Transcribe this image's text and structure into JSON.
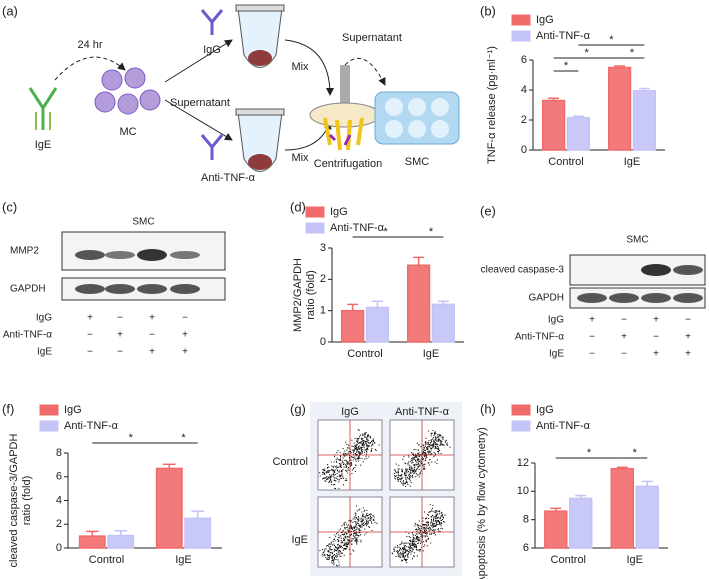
{
  "panel_labels": [
    "(a)",
    "(b)",
    "(c)",
    "(d)",
    "(e)",
    "(f)",
    "(g)",
    "(h)"
  ],
  "diagram": {
    "time": "24 hr",
    "antibody": "IgE",
    "cells": "MC",
    "supernatant_left": "Supernatant",
    "igg": "IgG",
    "anti": "Anti-TNF-α",
    "mix_top": "Mix",
    "mix_bottom": "Mix",
    "supernatant_right": "Supernatant",
    "centrifuge": "Centrifugation",
    "target": "SMC"
  },
  "blot_c": {
    "title": "SMC",
    "bands": [
      "MMP2",
      "GAPDH"
    ],
    "rows": [
      {
        "label": "IgG",
        "signs": [
          "+",
          "−",
          "+",
          "−"
        ]
      },
      {
        "label": "Anti-TNF-α",
        "signs": [
          "−",
          "+",
          "−",
          "+"
        ]
      },
      {
        "label": "IgE",
        "signs": [
          "−",
          "−",
          "+",
          "+"
        ]
      }
    ]
  },
  "blot_e": {
    "title": "SMC",
    "bands": [
      "cleaved caspase-3",
      "GAPDH"
    ],
    "rows": [
      {
        "label": "IgG",
        "signs": [
          "+",
          "−",
          "+",
          "−"
        ]
      },
      {
        "label": "Anti-TNF-α",
        "signs": [
          "−",
          "+",
          "−",
          "+"
        ]
      },
      {
        "label": "IgE",
        "signs": [
          "−",
          "−",
          "+",
          "+"
        ]
      }
    ]
  },
  "flow_g": {
    "columns": [
      "IgG",
      "Anti-TNF-α"
    ],
    "rows": [
      "Control",
      "IgE"
    ]
  },
  "chart_data": [
    {
      "type": "bar",
      "y_label": [
        "TNF-α release (pg·ml⁻¹)"
      ],
      "categories": [
        "Control",
        "IgE"
      ],
      "series": [
        {
          "name": "IgG",
          "color": "#f26b6b",
          "values": [
            3.3,
            5.5
          ],
          "errors": [
            0.15,
            0.1
          ]
        },
        {
          "name": "Anti-TNF-α",
          "color": "#c3c3f7",
          "values": [
            2.15,
            3.95
          ],
          "errors": [
            0.1,
            0.15
          ]
        }
      ],
      "ylim": [
        0,
        6
      ],
      "yticks": [
        0,
        2,
        4,
        6
      ],
      "annotations": [
        "*",
        "*",
        "*",
        "*"
      ]
    },
    {
      "type": "bar",
      "y_label": [
        "MMP2/GAPDH",
        "ratio (fold)"
      ],
      "categories": [
        "Control",
        "IgE"
      ],
      "series": [
        {
          "name": "IgG",
          "color": "#f26b6b",
          "values": [
            1.0,
            2.45
          ],
          "errors": [
            0.2,
            0.25
          ]
        },
        {
          "name": "Anti-TNF-α",
          "color": "#c3c3f7",
          "values": [
            1.1,
            1.2
          ],
          "errors": [
            0.2,
            0.1
          ]
        }
      ],
      "ylim": [
        0,
        3
      ],
      "yticks": [
        0,
        1,
        2,
        3
      ],
      "annotations": [
        "*",
        "*"
      ]
    },
    {
      "type": "bar",
      "y_label": [
        "cleaved caspase-3/GAPDH",
        "ratio (fold)"
      ],
      "categories": [
        "Control",
        "IgE"
      ],
      "series": [
        {
          "name": "IgG",
          "color": "#f26b6b",
          "values": [
            1.0,
            6.7
          ],
          "errors": [
            0.4,
            0.35
          ]
        },
        {
          "name": "Anti-TNF-α",
          "color": "#c3c3f7",
          "values": [
            1.05,
            2.5
          ],
          "errors": [
            0.4,
            0.6
          ]
        }
      ],
      "ylim": [
        0,
        8
      ],
      "yticks": [
        0,
        2,
        4,
        6,
        8
      ],
      "annotations": [
        "*",
        "*"
      ]
    },
    {
      "type": "bar",
      "y_label": [
        "Apoptosis (% by flow cytometry)"
      ],
      "categories": [
        "Control",
        "IgE"
      ],
      "series": [
        {
          "name": "IgG",
          "color": "#f26b6b",
          "values": [
            8.6,
            11.6
          ],
          "errors": [
            0.2,
            0.1
          ]
        },
        {
          "name": "Anti-TNF-α",
          "color": "#c3c3f7",
          "values": [
            9.5,
            10.35
          ],
          "errors": [
            0.2,
            0.35
          ]
        }
      ],
      "ylim": [
        6,
        12
      ],
      "yticks": [
        6,
        8,
        10,
        12
      ],
      "annotations": [
        "*",
        "*"
      ]
    }
  ]
}
